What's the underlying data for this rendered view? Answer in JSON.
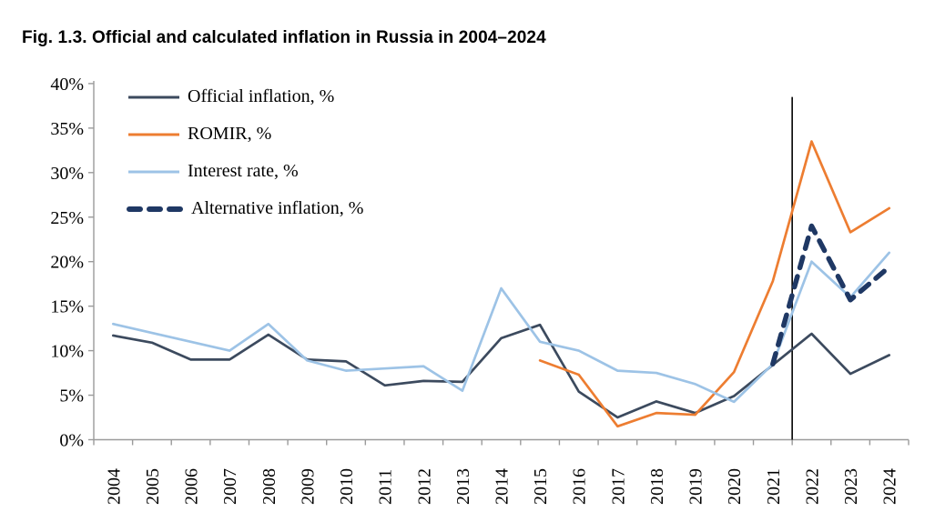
{
  "figure": {
    "title": "Fig. 1.3. Official and calculated inflation in Russia in 2004–2024"
  },
  "chart_data": {
    "type": "line",
    "title": "Fig. 1.3. Official and calculated inflation in Russia in 2004–2024",
    "categories": [
      "2004",
      "2005",
      "2006",
      "2007",
      "2008",
      "2009",
      "2010",
      "2011",
      "2012",
      "2013",
      "2014",
      "2015",
      "2016",
      "2017",
      "2018",
      "2019",
      "2020",
      "2021",
      "2022",
      "2023",
      "2024"
    ],
    "series": [
      {
        "name": "Official inflation, %",
        "color": "#3C4A5E",
        "style": "solid",
        "values": [
          11.7,
          10.9,
          9.0,
          9.0,
          11.8,
          9.0,
          8.8,
          6.1,
          6.6,
          6.5,
          11.4,
          12.9,
          5.4,
          2.5,
          4.3,
          3.0,
          4.9,
          8.4,
          11.9,
          7.4,
          9.5
        ]
      },
      {
        "name": "ROMIR, %",
        "color": "#ED7D31",
        "style": "solid",
        "values": [
          null,
          null,
          null,
          null,
          null,
          null,
          null,
          null,
          null,
          null,
          null,
          8.9,
          7.3,
          1.5,
          3.0,
          2.8,
          7.6,
          17.8,
          33.5,
          23.3,
          26.0
        ]
      },
      {
        "name": "Interest rate, %",
        "color": "#9DC3E6",
        "style": "solid",
        "values": [
          13.0,
          12.0,
          11.0,
          10.0,
          13.0,
          8.9,
          7.75,
          8.0,
          8.25,
          5.5,
          17.0,
          11.0,
          10.0,
          7.75,
          7.5,
          6.25,
          4.25,
          8.5,
          20.0,
          16.0,
          21.0
        ]
      },
      {
        "name": "Alternative inflation, %",
        "color": "#1F3864",
        "style": "dashed",
        "values": [
          null,
          null,
          null,
          null,
          null,
          null,
          null,
          null,
          null,
          null,
          null,
          null,
          null,
          null,
          null,
          null,
          null,
          8.5,
          24.0,
          15.7,
          19.4
        ]
      }
    ],
    "ylim": [
      0,
      40
    ],
    "ytick_step": 5,
    "ytick_format": "percent",
    "xlabel": "",
    "ylabel": "",
    "grid": false,
    "legend_position": "top-left",
    "annotations": [
      {
        "type": "vline",
        "x_index": 17.5,
        "label_between": [
          "2021",
          "2022"
        ],
        "ymax": 38.5,
        "color": "#000000"
      }
    ]
  }
}
